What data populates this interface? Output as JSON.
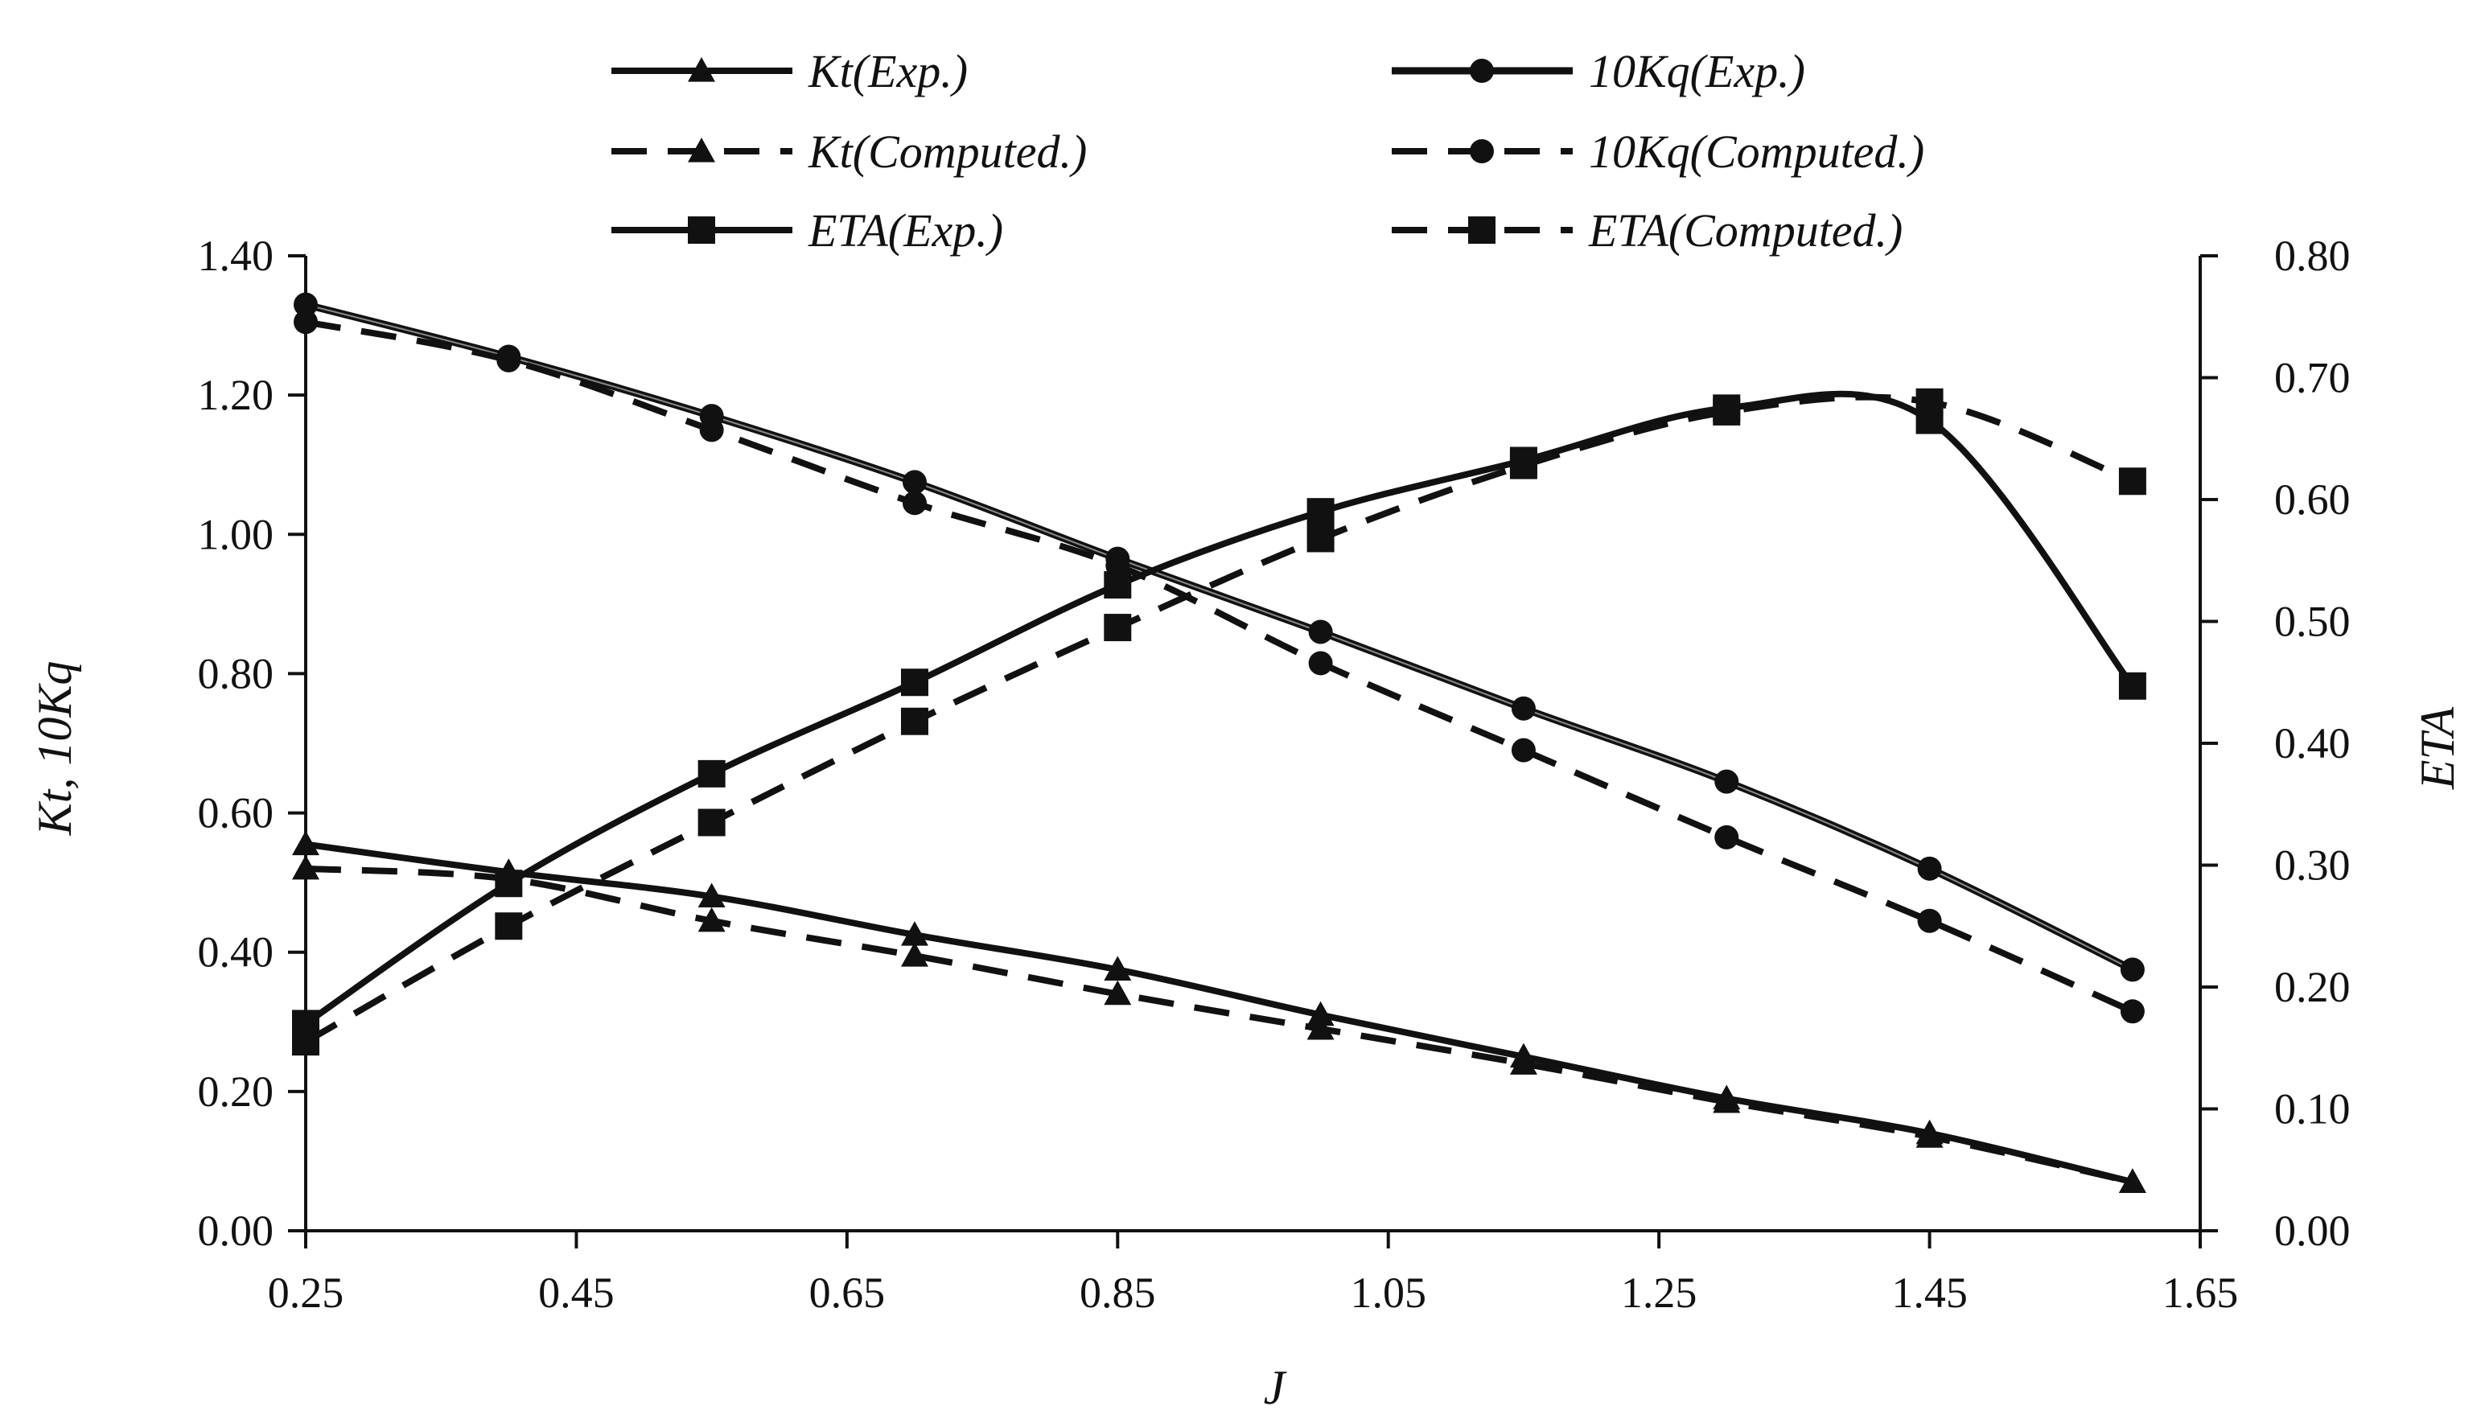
{
  "chart_data": {
    "type": "line",
    "title": "",
    "xlabel": "J",
    "ylabel": "Kt, 10Kq",
    "y2label": "ETA",
    "xlim": [
      0.25,
      1.65
    ],
    "ylim": [
      0,
      1.4
    ],
    "y2lim": [
      0,
      0.8
    ],
    "xticks": [
      "0.25",
      "0.45",
      "0.65",
      "0.85",
      "1.05",
      "1.25",
      "1.45",
      "1.65"
    ],
    "yticks": [
      "0.00",
      "0.20",
      "0.40",
      "0.60",
      "0.80",
      "1.00",
      "1.20",
      "1.40"
    ],
    "y2ticks": [
      "0.00",
      "0.10",
      "0.20",
      "0.30",
      "0.40",
      "0.50",
      "0.60",
      "0.70",
      "0.80"
    ],
    "legend_position": "top",
    "x": [
      0.25,
      0.4,
      0.55,
      0.7,
      0.85,
      1.0,
      1.15,
      1.3,
      1.45,
      1.6
    ],
    "series": [
      {
        "name": "Kt(Exp.)",
        "axis": "left",
        "marker": "triangle",
        "line": "solid",
        "values": [
          0.555,
          0.515,
          0.48,
          0.425,
          0.375,
          0.31,
          0.25,
          0.19,
          0.14,
          0.07
        ]
      },
      {
        "name": "10Kq(Exp.)",
        "axis": "left",
        "marker": "circle",
        "line": "solid-double",
        "values": [
          1.33,
          1.255,
          1.17,
          1.075,
          0.965,
          0.86,
          0.75,
          0.645,
          0.52,
          0.375
        ]
      },
      {
        "name": "ETA(Exp.)",
        "axis": "right",
        "marker": "square",
        "line": "solid",
        "values": [
          0.17,
          0.285,
          0.375,
          0.45,
          0.53,
          0.59,
          0.632,
          0.675,
          0.665,
          0.447
        ]
      },
      {
        "name": "Kt(Computed.)",
        "axis": "left",
        "marker": "triangle",
        "line": "dashed",
        "values": [
          0.52,
          0.505,
          0.445,
          0.395,
          0.34,
          0.29,
          0.24,
          0.185,
          0.135,
          0.07
        ]
      },
      {
        "name": "10Kq(Computed.)",
        "axis": "left",
        "marker": "circle",
        "line": "dashed",
        "values": [
          1.305,
          1.25,
          1.15,
          1.045,
          0.955,
          0.815,
          0.69,
          0.565,
          0.445,
          0.315
        ]
      },
      {
        "name": "ETA(Computed.)",
        "axis": "right",
        "marker": "square",
        "line": "dashed",
        "values": [
          0.155,
          0.25,
          0.335,
          0.418,
          0.495,
          0.568,
          0.628,
          0.672,
          0.68,
          0.615
        ]
      }
    ],
    "legend": {
      "entries": [
        "Kt(Exp.)",
        "10Kq(Exp.)",
        "Kt(Computed.)",
        "10Kq(Computed.)",
        "ETA(Exp.)",
        "ETA(Computed.)"
      ]
    },
    "grid": false
  }
}
